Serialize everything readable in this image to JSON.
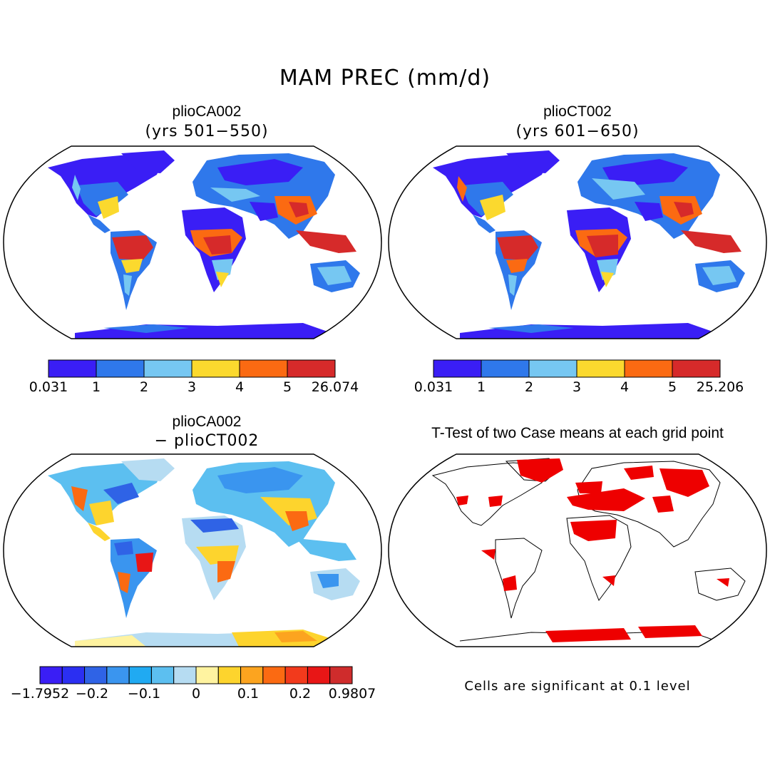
{
  "figure": {
    "title": "MAM PREC (mm/d)"
  },
  "panels": [
    {
      "id": "top-left",
      "title": "plioCA002",
      "subtitle": "(yrs 501−550)",
      "colorbar": {
        "colors": [
          "#3a1ef5",
          "#2f78eb",
          "#76c7f2",
          "#fbd92e",
          "#fb6a12",
          "#d62a2a"
        ],
        "labels": [
          "0.031",
          "1",
          "2",
          "3",
          "4",
          "5",
          "26.074"
        ]
      }
    },
    {
      "id": "top-right",
      "title": "plioCT002",
      "subtitle": "(yrs 601−650)",
      "colorbar": {
        "colors": [
          "#3a1ef5",
          "#2f78eb",
          "#76c7f2",
          "#fbd92e",
          "#fb6a12",
          "#d62a2a"
        ],
        "labels": [
          "0.031",
          "1",
          "2",
          "3",
          "4",
          "5",
          "25.206"
        ]
      }
    },
    {
      "id": "bottom-left",
      "title": "plioCA002",
      "subtitle": "− plioCT002",
      "colorbar": {
        "colors": [
          "#3a1ef5",
          "#2b2ff2",
          "#2f63e6",
          "#3a95ef",
          "#20aaf2",
          "#5cbff0",
          "#b6dcf2",
          "#fff3a0",
          "#fdd42d",
          "#fca41f",
          "#fb6a12",
          "#f23a1c",
          "#e81616",
          "#cf2c2c"
        ],
        "labels": [
          "−1.7952",
          "−0.2",
          "−0.1",
          "0",
          "0.1",
          "0.2",
          "0.9807"
        ]
      }
    },
    {
      "id": "bottom-right",
      "title": "T-Test of two Case means at each grid point",
      "note": "Cells are significant at 0.1 level",
      "significance_color": "#ee0000"
    }
  ],
  "land_palette": {
    "ocean": "#ffffff",
    "outline": "#000000"
  }
}
